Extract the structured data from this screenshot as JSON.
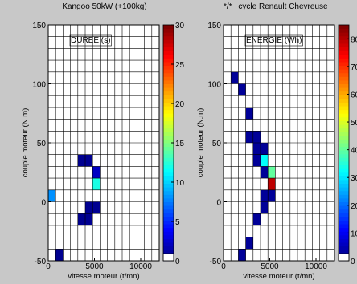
{
  "page": {
    "left_title": "Kangoo 50kW (+100kg)",
    "right_title_prefix": "*/*",
    "right_title": "cycle Renault Chevreuse"
  },
  "chart_data": [
    {
      "type": "heatmap",
      "title": "Kangoo 50kW (+100kg)",
      "annotation": "DUREE (s)",
      "xlabel": "vitesse moteur (t/mn)",
      "ylabel": "couple moteur (N.m)",
      "xlim": [
        0,
        12000
      ],
      "ylim": [
        -50,
        150
      ],
      "xticks": [
        0,
        5000,
        10000
      ],
      "yticks": [
        -50,
        0,
        50,
        100,
        150
      ],
      "cell_size": {
        "x": 800,
        "y": 10
      },
      "grid": true,
      "colorbar": {
        "min": 0,
        "max": 30,
        "ticks": [
          0,
          5,
          10,
          15,
          20,
          25,
          30
        ],
        "colormap": "jet"
      },
      "cells": [
        {
          "x": 800,
          "y": -50,
          "value": 0.5
        },
        {
          "x": 0,
          "y": 0,
          "value": 8
        },
        {
          "x": 3200,
          "y": -20,
          "value": 0.5
        },
        {
          "x": 4000,
          "y": -20,
          "value": 0.5
        },
        {
          "x": 4000,
          "y": -10,
          "value": 0.5
        },
        {
          "x": 4800,
          "y": -10,
          "value": 0.5
        },
        {
          "x": 4800,
          "y": 10,
          "value": 12
        },
        {
          "x": 4800,
          "y": 20,
          "value": 2
        },
        {
          "x": 3200,
          "y": 30,
          "value": 0.5
        },
        {
          "x": 4000,
          "y": 30,
          "value": 0.5
        }
      ]
    },
    {
      "type": "heatmap",
      "title": "cycle Renault Chevreuse",
      "annotation": "ENERGIE (Wh)",
      "xlabel": "vitesse moteur (t/mn)",
      "ylabel": "couple moteur (N.m)",
      "xlim": [
        0,
        12000
      ],
      "ylim": [
        -50,
        150
      ],
      "xticks": [
        0,
        5000,
        10000
      ],
      "yticks": [
        -50,
        0,
        50,
        100,
        150
      ],
      "cell_size": {
        "x": 800,
        "y": 10
      },
      "grid": true,
      "colorbar": {
        "min": 0,
        "max": 85,
        "ticks": [
          0,
          10,
          20,
          30,
          40,
          50,
          60,
          70,
          80
        ],
        "colormap": "jet"
      },
      "cells": [
        {
          "x": 800,
          "y": 100,
          "value": 2
        },
        {
          "x": 1600,
          "y": 90,
          "value": 2
        },
        {
          "x": 2400,
          "y": 70,
          "value": 2
        },
        {
          "x": 2400,
          "y": 50,
          "value": 2
        },
        {
          "x": 3200,
          "y": 50,
          "value": 2
        },
        {
          "x": 3200,
          "y": 40,
          "value": 2
        },
        {
          "x": 4000,
          "y": 40,
          "value": 2
        },
        {
          "x": 3200,
          "y": 30,
          "value": 2
        },
        {
          "x": 4000,
          "y": 30,
          "value": 32
        },
        {
          "x": 4000,
          "y": 20,
          "value": 2
        },
        {
          "x": 4800,
          "y": 20,
          "value": 40
        },
        {
          "x": 4800,
          "y": 10,
          "value": 80
        },
        {
          "x": 4000,
          "y": 0,
          "value": 2
        },
        {
          "x": 4800,
          "y": 0,
          "value": 2
        },
        {
          "x": 4000,
          "y": -10,
          "value": 2
        },
        {
          "x": 3200,
          "y": -20,
          "value": 2
        },
        {
          "x": 2400,
          "y": -40,
          "value": 2
        },
        {
          "x": 1600,
          "y": -50,
          "value": 2
        }
      ]
    }
  ]
}
